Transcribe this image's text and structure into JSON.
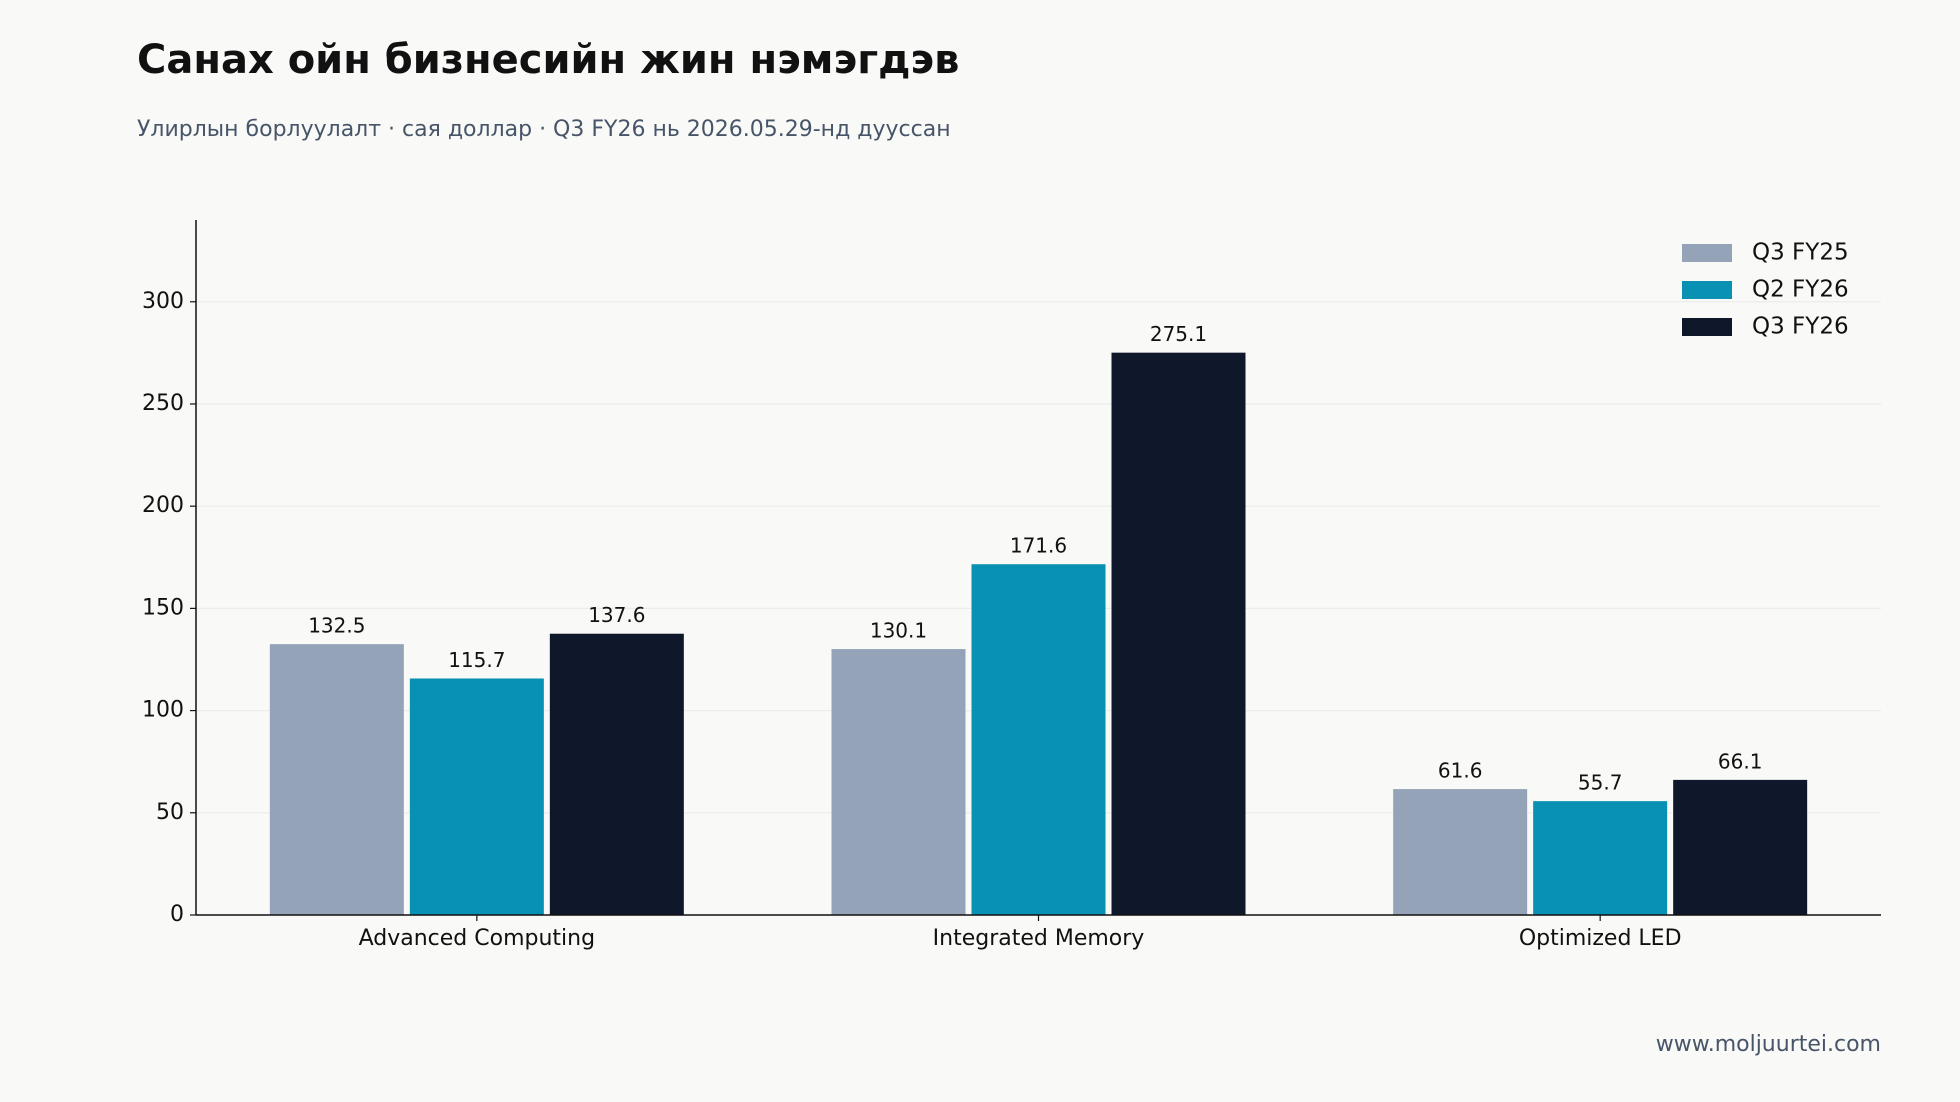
{
  "chart_data": {
    "type": "bar",
    "title": "Санах ойн бизнесийн жин нэмэгдэв",
    "subtitle": "Улирлын борлуулалт · сая доллар · Q3 FY26 нь 2026.05.29-нд дууссан",
    "source": "www.moljuurtei.com",
    "categories": [
      "Advanced Computing",
      "Integrated Memory",
      "Optimized LED"
    ],
    "series": [
      {
        "name": "Q3 FY25",
        "color": "#94a3b8",
        "values": [
          132.5,
          130.1,
          61.6
        ]
      },
      {
        "name": "Q2 FY26",
        "color": "#0891b2",
        "values": [
          115.7,
          171.6,
          55.7
        ]
      },
      {
        "name": "Q3 FY26",
        "color": "#0f172a",
        "values": [
          137.6,
          275.1,
          66.1
        ]
      }
    ],
    "ylim": [
      0,
      340
    ],
    "yticks": [
      0,
      50,
      100,
      150,
      200,
      250,
      300
    ],
    "grid": true,
    "legend": "upper right"
  }
}
